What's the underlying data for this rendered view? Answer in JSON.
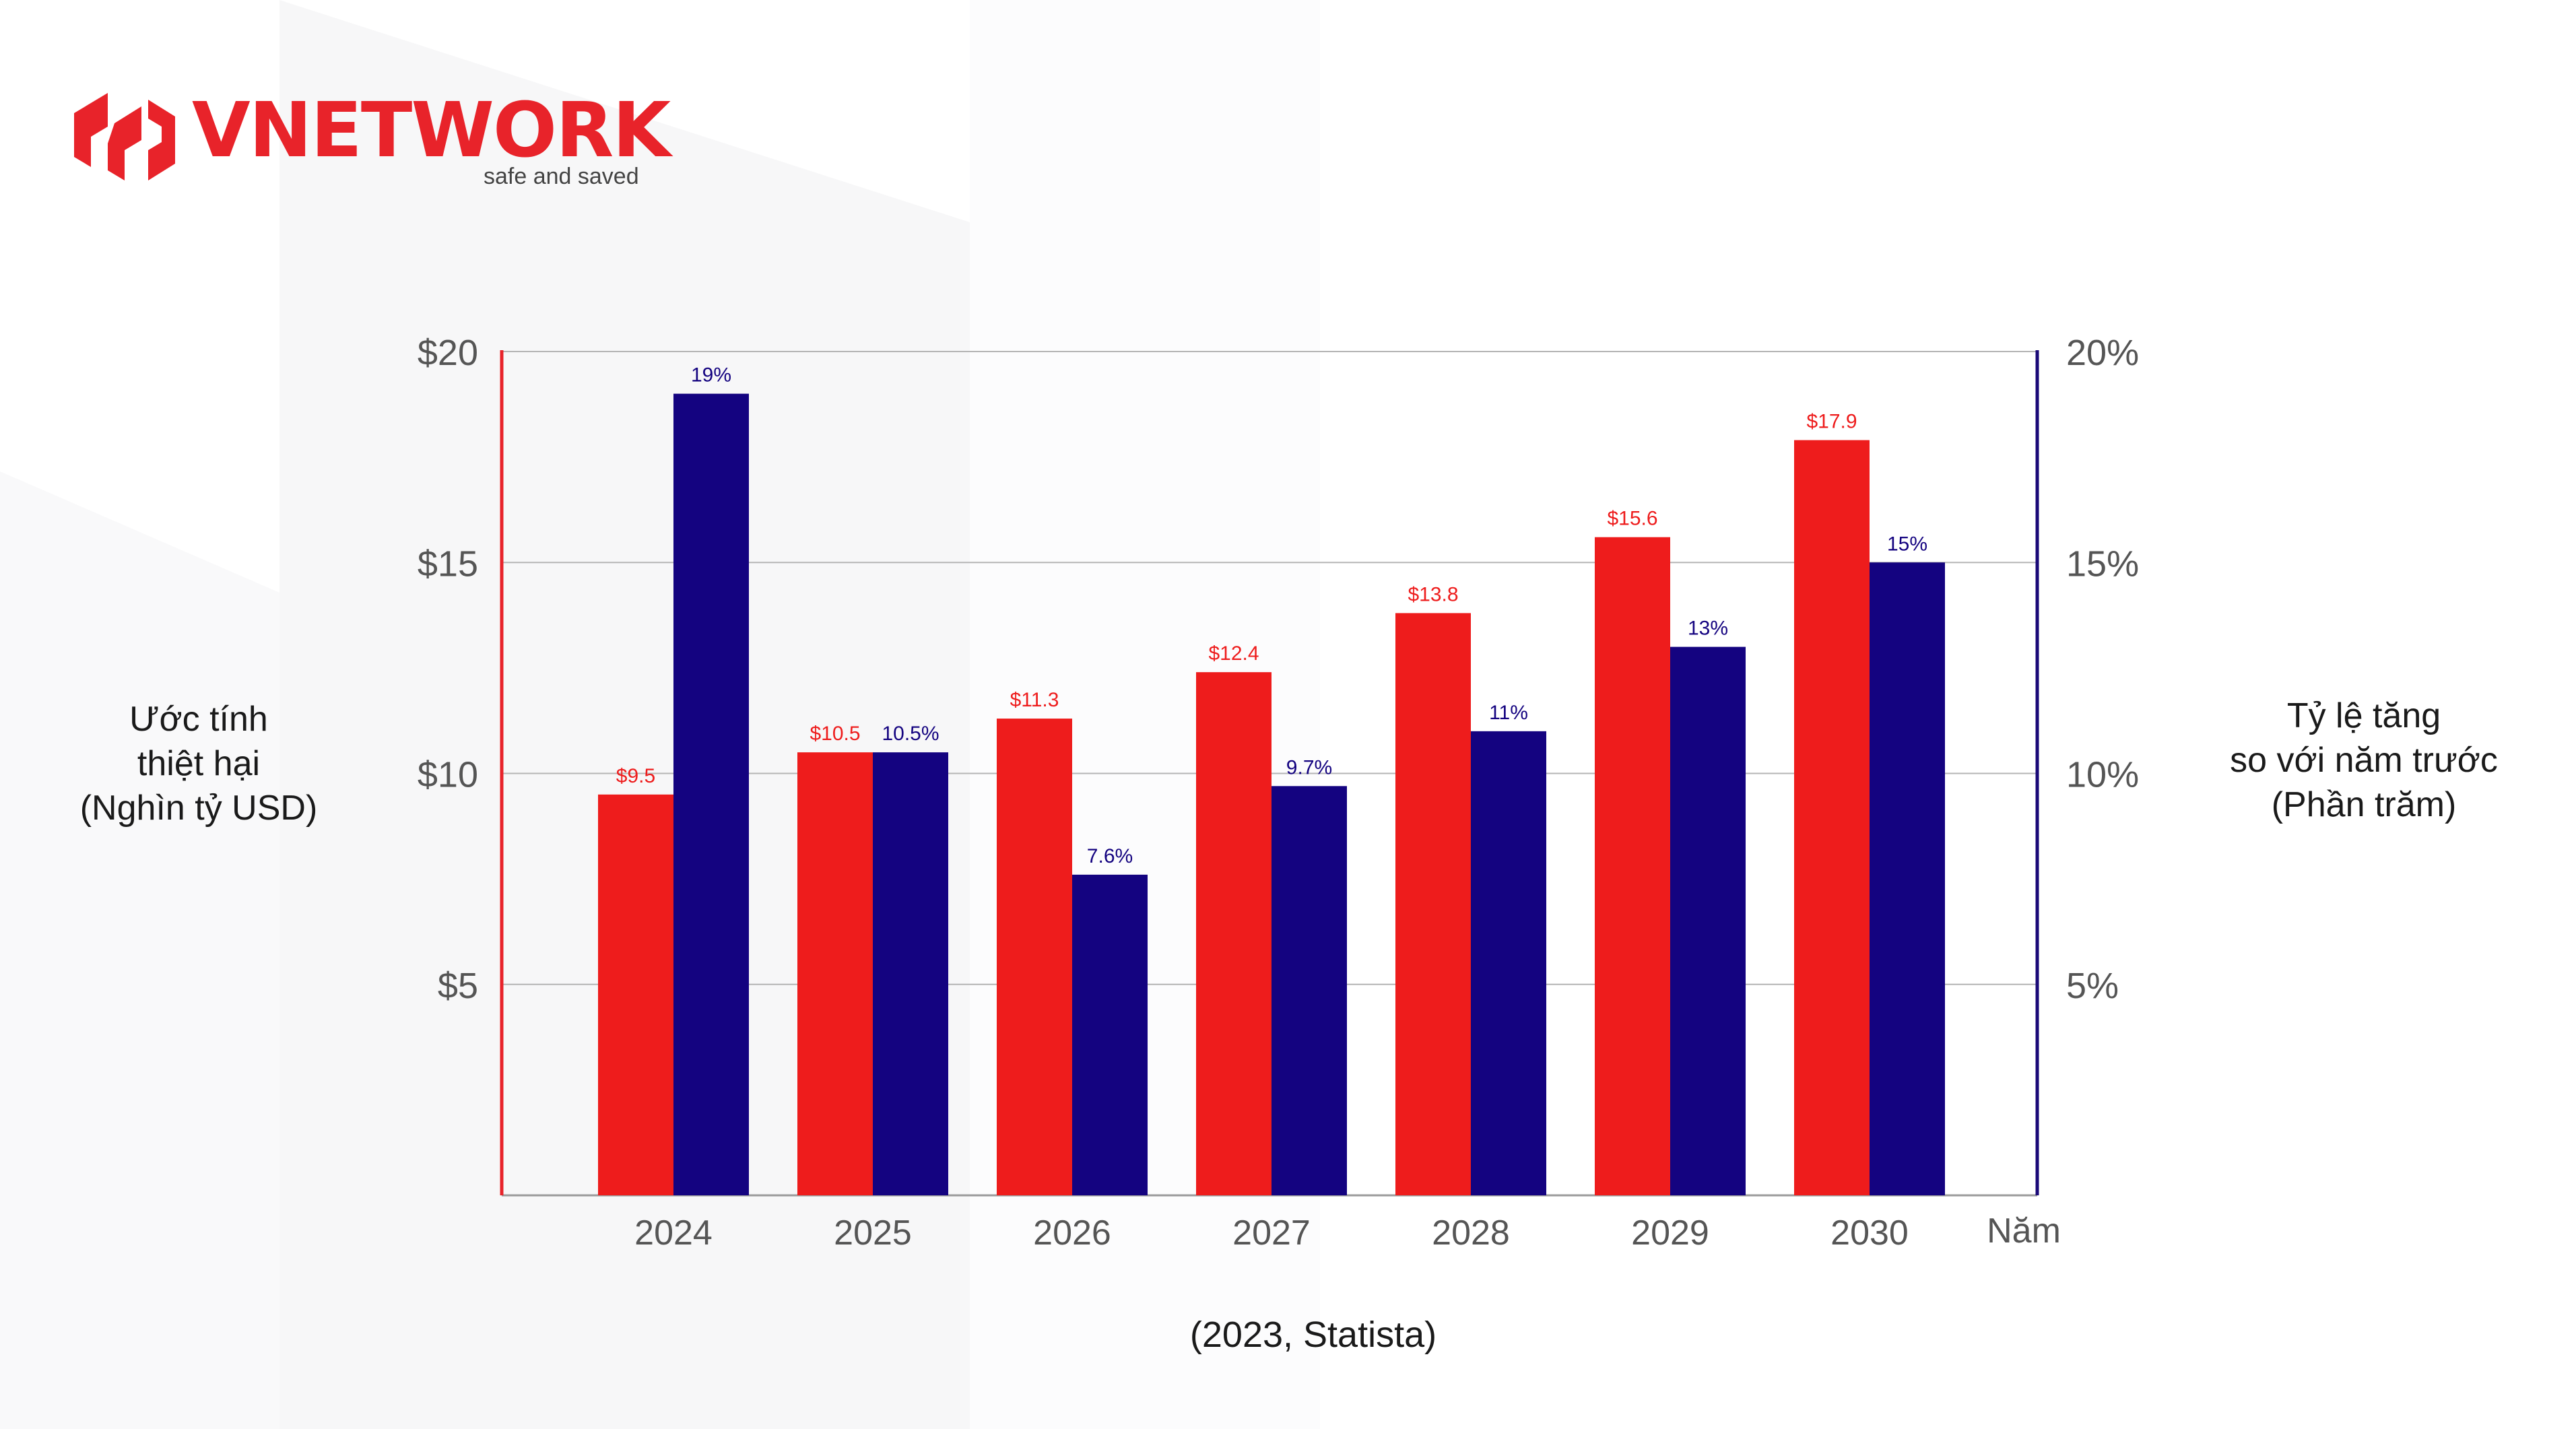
{
  "brand": {
    "name": "VNETWORK",
    "tagline": "safe and saved",
    "color": "#e8232a"
  },
  "colors": {
    "damage_bar": "#ee1c1c",
    "growth_bar": "#140380",
    "left_axis": "#e8232a",
    "right_axis": "#1a0a78",
    "grid": "#b5b5b5"
  },
  "left_axis_title": [
    "Ước tính",
    "thiệt hại",
    "(Nghìn tỷ USD)"
  ],
  "right_axis_title": [
    "Tỷ lệ tăng",
    "so với năm trước",
    "(Phần trăm)"
  ],
  "source": "(2023, Statista)",
  "chart_data": {
    "type": "bar",
    "categories": [
      "2024",
      "2025",
      "2026",
      "2027",
      "2028",
      "2029",
      "2030"
    ],
    "xlabel": "Năm",
    "series": [
      {
        "name": "Ước tính thiệt hại (Nghìn tỷ USD)",
        "axis": "left",
        "values": [
          9.5,
          10.5,
          11.3,
          12.4,
          13.8,
          15.6,
          17.9
        ],
        "labels": [
          "$9.5",
          "$10.5",
          "$11.3",
          "$12.4",
          "$13.8",
          "$15.6",
          "$17.9"
        ]
      },
      {
        "name": "Tỷ lệ tăng so với năm trước (Phần trăm)",
        "axis": "right",
        "values": [
          19,
          10.5,
          7.6,
          9.7,
          11,
          13,
          15
        ],
        "labels": [
          "19%",
          "10.5%",
          "7.6%",
          "9.7%",
          "11%",
          "13%",
          "15%"
        ]
      }
    ],
    "left_axis": {
      "ylim": [
        0,
        20
      ],
      "ticks": [
        5,
        10,
        15,
        20
      ],
      "tick_labels": [
        "$5",
        "$10",
        "$15",
        "$20"
      ]
    },
    "right_axis": {
      "ylim": [
        0,
        20
      ],
      "ticks": [
        5,
        10,
        15,
        20
      ],
      "tick_labels": [
        "5%",
        "10%",
        "15%",
        "20%"
      ]
    },
    "grid": true
  }
}
